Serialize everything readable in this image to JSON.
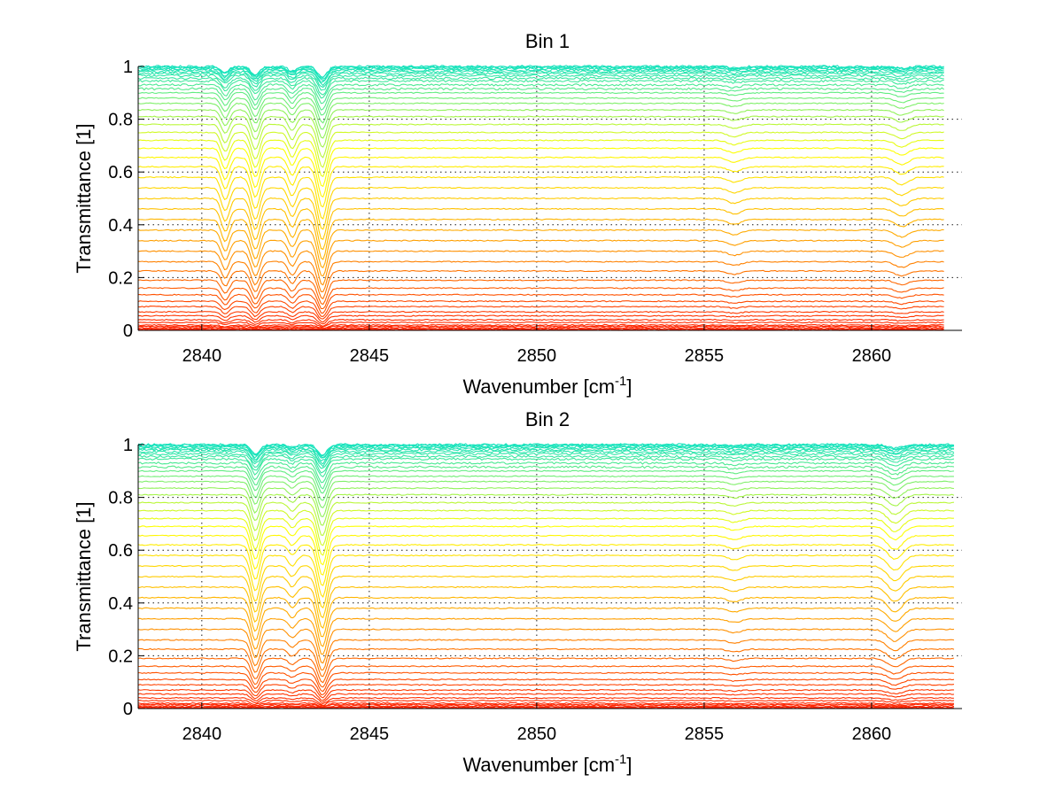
{
  "chart_data": [
    {
      "type": "line",
      "title": "Bin 1",
      "xlabel": "Wavenumber [cm",
      "xlabel_sup": "-1",
      "xlabel_close": "]",
      "ylabel": "Transmittance [1]",
      "xlim": [
        2838.1,
        2862.7
      ],
      "ylim": [
        0,
        1
      ],
      "x_end": 2862.2,
      "xticks": [
        2840,
        2845,
        2850,
        2855,
        2860
      ],
      "yticks": [
        0,
        0.2,
        0.4,
        0.6,
        0.8,
        1
      ],
      "ytick_labels": [
        "0",
        "0.2",
        "0.4",
        "0.6",
        "0.8",
        "1"
      ],
      "grid": true,
      "colormap": [
        "#00e0d0",
        "#ffff00",
        "#ffa000",
        "#ff2000"
      ],
      "absorption_lines": [
        {
          "center": 2840.7,
          "depth": 0.55,
          "width": 0.12
        },
        {
          "center": 2841.6,
          "depth": 0.75,
          "width": 0.13
        },
        {
          "center": 2842.7,
          "depth": 0.45,
          "width": 0.12
        },
        {
          "center": 2843.6,
          "depth": 1.0,
          "width": 0.14
        },
        {
          "center": 2855.9,
          "depth": 0.12,
          "width": 0.2
        },
        {
          "center": 2860.9,
          "depth": 0.18,
          "width": 0.2
        }
      ],
      "series_levels": [
        0.0,
        0.003,
        0.006,
        0.01,
        0.015,
        0.02,
        0.03,
        0.04,
        0.055,
        0.07,
        0.09,
        0.11,
        0.135,
        0.16,
        0.19,
        0.225,
        0.26,
        0.3,
        0.34,
        0.38,
        0.42,
        0.46,
        0.5,
        0.54,
        0.58,
        0.62,
        0.655,
        0.69,
        0.72,
        0.75,
        0.78,
        0.81,
        0.835,
        0.86,
        0.88,
        0.9,
        0.915,
        0.93,
        0.945,
        0.955,
        0.965,
        0.973,
        0.98,
        0.986,
        0.991,
        0.995,
        0.998,
        1.0
      ]
    },
    {
      "type": "line",
      "title": "Bin 2",
      "xlabel": "Wavenumber [cm",
      "xlabel_sup": "-1",
      "xlabel_close": "]",
      "ylabel": "Transmittance [1]",
      "xlim": [
        2838.1,
        2862.7
      ],
      "ylim": [
        0,
        1
      ],
      "x_end": 2862.5,
      "xticks": [
        2840,
        2845,
        2850,
        2855,
        2860
      ],
      "yticks": [
        0,
        0.2,
        0.4,
        0.6,
        0.8,
        1
      ],
      "ytick_labels": [
        "0",
        "0.2",
        "0.4",
        "0.6",
        "0.8",
        "1"
      ],
      "grid": true,
      "colormap": [
        "#00e0d0",
        "#ffff00",
        "#ffa000",
        "#ff2000"
      ],
      "absorption_lines": [
        {
          "center": 2841.6,
          "depth": 0.85,
          "width": 0.13
        },
        {
          "center": 2842.7,
          "depth": 0.25,
          "width": 0.12
        },
        {
          "center": 2843.6,
          "depth": 1.0,
          "width": 0.14
        },
        {
          "center": 2855.9,
          "depth": 0.1,
          "width": 0.2
        },
        {
          "center": 2860.7,
          "depth": 0.35,
          "width": 0.22
        }
      ],
      "series_levels": [
        0.0,
        0.003,
        0.006,
        0.01,
        0.015,
        0.02,
        0.03,
        0.04,
        0.055,
        0.07,
        0.09,
        0.11,
        0.135,
        0.16,
        0.19,
        0.225,
        0.26,
        0.3,
        0.34,
        0.38,
        0.42,
        0.46,
        0.5,
        0.54,
        0.58,
        0.62,
        0.655,
        0.69,
        0.72,
        0.75,
        0.78,
        0.81,
        0.835,
        0.86,
        0.88,
        0.9,
        0.915,
        0.93,
        0.945,
        0.955,
        0.965,
        0.973,
        0.98,
        0.986,
        0.991,
        0.995,
        0.998,
        1.0
      ]
    }
  ]
}
